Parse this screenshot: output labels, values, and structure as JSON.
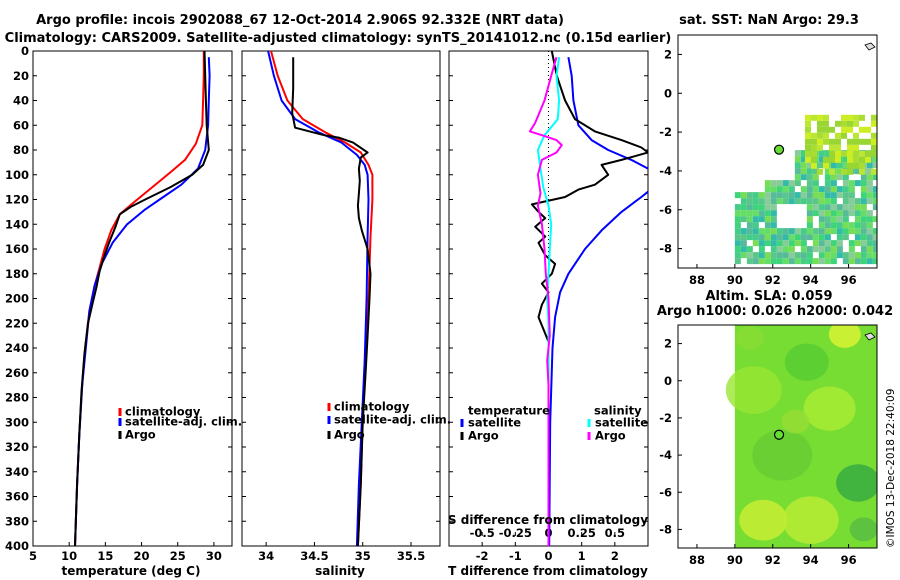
{
  "header": {
    "title_line1": "Argo profile: incois 2902088_67 12-Oct-2014 2.906S 92.332E (NRT data)",
    "title_line2": "Climatology: CARS2009. Satellite-adjusted climatology: synTS_20141012.nc (0.15d earlier)"
  },
  "colors": {
    "climatology": "#ff0000",
    "satellite": "#0000ff",
    "argo": "#000000",
    "sal_satellite": "#00ffff",
    "sal_argo": "#ff00ff"
  },
  "watermark": "©IMOS 13-Dec-2018 22:40:09",
  "chart_data": [
    {
      "id": "temperature",
      "type": "line",
      "xlabel": "temperature (deg C)",
      "ylabel": "",
      "xlim": [
        5,
        32.5
      ],
      "ylim": [
        400,
        0
      ],
      "xticks": [
        5,
        10,
        15,
        20,
        25,
        30
      ],
      "yticks": [
        0,
        20,
        40,
        60,
        80,
        100,
        120,
        140,
        160,
        180,
        200,
        220,
        240,
        260,
        280,
        300,
        320,
        340,
        360,
        380,
        400
      ],
      "legend": {
        "position": "lower-right",
        "entries": [
          "climatology",
          "satellite-adj. clim.",
          "Argo"
        ]
      },
      "series": [
        {
          "name": "climatology",
          "color": "#ff0000",
          "points": [
            [
              28.6,
              0
            ],
            [
              28.6,
              20
            ],
            [
              28.5,
              40
            ],
            [
              28.4,
              60
            ],
            [
              27.5,
              75
            ],
            [
              26,
              88
            ],
            [
              24,
              98
            ],
            [
              21.5,
              110
            ],
            [
              19,
              122
            ],
            [
              17,
              132
            ],
            [
              15.8,
              145
            ],
            [
              14.9,
              160
            ],
            [
              14.2,
              175
            ],
            [
              13.5,
              190
            ],
            [
              12.8,
              210
            ],
            [
              12.2,
              240
            ],
            [
              11.8,
              270
            ],
            [
              11.4,
              310
            ],
            [
              11.1,
              350
            ],
            [
              10.8,
              400
            ]
          ]
        },
        {
          "name": "satellite-adj. clim.",
          "color": "#0000ff",
          "points": [
            [
              29.3,
              5
            ],
            [
              29.4,
              20
            ],
            [
              29.3,
              40
            ],
            [
              29.2,
              60
            ],
            [
              28.8,
              80
            ],
            [
              27.8,
              95
            ],
            [
              25.5,
              108
            ],
            [
              23,
              118
            ],
            [
              20.5,
              128
            ],
            [
              18,
              140
            ],
            [
              16,
              155
            ],
            [
              14.5,
              172
            ],
            [
              13.5,
              190
            ],
            [
              12.8,
              210
            ],
            [
              12.3,
              240
            ],
            [
              11.8,
              270
            ],
            [
              11.4,
              310
            ],
            [
              11.1,
              350
            ],
            [
              10.8,
              400
            ]
          ]
        },
        {
          "name": "Argo",
          "color": "#000000",
          "points": [
            [
              28.7,
              0
            ],
            [
              28.8,
              20
            ],
            [
              28.9,
              40
            ],
            [
              29,
              60
            ],
            [
              29.3,
              80
            ],
            [
              28.5,
              92
            ],
            [
              27,
              100
            ],
            [
              24,
              110
            ],
            [
              20.5,
              120
            ],
            [
              18.5,
              126
            ],
            [
              17,
              132
            ],
            [
              16.4,
              142
            ],
            [
              15.5,
              155
            ],
            [
              14.9,
              165
            ],
            [
              14.2,
              178
            ],
            [
              13.8,
              190
            ],
            [
              13.2,
              205
            ],
            [
              12.6,
              220
            ],
            [
              12.1,
              245
            ],
            [
              11.7,
              275
            ],
            [
              11.4,
              310
            ],
            [
              11.1,
              350
            ],
            [
              10.8,
              400
            ]
          ]
        }
      ]
    },
    {
      "id": "salinity",
      "type": "line",
      "xlabel": "salinity",
      "ylabel": "",
      "xlim": [
        33.75,
        35.8
      ],
      "ylim": [
        400,
        0
      ],
      "xticks": [
        34,
        34.5,
        35,
        35.5
      ],
      "legend": {
        "position": "lower-right",
        "entries": [
          "climatology",
          "satellite-adj. clim.",
          "Argo"
        ]
      },
      "series": [
        {
          "name": "climatology",
          "color": "#ff0000",
          "points": [
            [
              34.05,
              0
            ],
            [
              34.12,
              20
            ],
            [
              34.22,
              40
            ],
            [
              34.38,
              55
            ],
            [
              34.62,
              66
            ],
            [
              34.82,
              74
            ],
            [
              34.98,
              82
            ],
            [
              35.06,
              92
            ],
            [
              35.1,
              100
            ],
            [
              35.1,
              120
            ],
            [
              35.08,
              150
            ],
            [
              35.06,
              200
            ],
            [
              35.03,
              250
            ],
            [
              35.0,
              300
            ],
            [
              34.98,
              350
            ],
            [
              34.95,
              400
            ]
          ]
        },
        {
          "name": "satellite-adj. clim.",
          "color": "#0000ff",
          "points": [
            [
              34.02,
              0
            ],
            [
              34.08,
              20
            ],
            [
              34.16,
              40
            ],
            [
              34.3,
              55
            ],
            [
              34.55,
              66
            ],
            [
              34.78,
              74
            ],
            [
              34.94,
              84
            ],
            [
              35.02,
              92
            ],
            [
              35.05,
              100
            ],
            [
              35.06,
              120
            ],
            [
              35.05,
              150
            ],
            [
              35.04,
              200
            ],
            [
              35.02,
              250
            ],
            [
              34.99,
              300
            ],
            [
              34.96,
              350
            ],
            [
              34.94,
              400
            ]
          ]
        },
        {
          "name": "Argo",
          "color": "#000000",
          "points": [
            [
              34.28,
              5
            ],
            [
              34.28,
              30
            ],
            [
              34.27,
              50
            ],
            [
              34.3,
              62
            ],
            [
              34.6,
              68
            ],
            [
              34.75,
              70
            ],
            [
              34.9,
              74
            ],
            [
              35.05,
              82
            ],
            [
              34.98,
              86
            ],
            [
              34.96,
              95
            ],
            [
              34.97,
              105
            ],
            [
              34.96,
              115
            ],
            [
              34.95,
              125
            ],
            [
              34.96,
              135
            ],
            [
              34.99,
              145
            ],
            [
              35.05,
              160
            ],
            [
              35.08,
              180
            ],
            [
              35.07,
              200
            ],
            [
              35.05,
              230
            ],
            [
              35.03,
              260
            ],
            [
              35.0,
              300
            ],
            [
              34.98,
              350
            ],
            [
              34.95,
              400
            ]
          ]
        }
      ]
    },
    {
      "id": "difference",
      "type": "line",
      "xlabel": "T difference from climatology",
      "xlabel_top": "S difference from climatology",
      "xlim": [
        -3,
        3
      ],
      "xlim_top": [
        -0.75,
        0.75
      ],
      "ylim": [
        400,
        0
      ],
      "xticks": [
        -2,
        -1,
        0,
        1,
        2
      ],
      "xticks_top": [
        -0.5,
        -0.25,
        0,
        0.25,
        0.5
      ],
      "legend": {
        "position": "lower",
        "group_left": "temperature",
        "group_right": "salinity",
        "entries_left": [
          "satellite",
          "Argo"
        ],
        "entries_right": [
          "satellite",
          "Argo"
        ]
      },
      "series": [
        {
          "name": "T satellite",
          "axis": "T",
          "color": "#0000ff",
          "points": [
            [
              0.6,
              5
            ],
            [
              0.7,
              20
            ],
            [
              0.75,
              40
            ],
            [
              0.9,
              60
            ],
            [
              1.3,
              72
            ],
            [
              1.8,
              80
            ],
            [
              2.5,
              88
            ],
            [
              3,
              95
            ],
            [
              3.4,
              105
            ],
            [
              2.8,
              118
            ],
            [
              2.2,
              130
            ],
            [
              1.6,
              145
            ],
            [
              1.1,
              160
            ],
            [
              0.6,
              180
            ],
            [
              0.35,
              195
            ],
            [
              0.2,
              215
            ],
            [
              0.12,
              240
            ],
            [
              0.05,
              300
            ],
            [
              0.02,
              400
            ]
          ]
        },
        {
          "name": "T Argo",
          "axis": "T",
          "color": "#000000",
          "points": [
            [
              0.1,
              0
            ],
            [
              0.25,
              20
            ],
            [
              0.5,
              40
            ],
            [
              0.8,
              55
            ],
            [
              1.4,
              65
            ],
            [
              2.2,
              72
            ],
            [
              2.8,
              78
            ],
            [
              3,
              82
            ],
            [
              2.2,
              88
            ],
            [
              1.6,
              92
            ],
            [
              1.8,
              100
            ],
            [
              1.4,
              108
            ],
            [
              0.9,
              112
            ],
            [
              0.5,
              118
            ],
            [
              -0.5,
              124
            ],
            [
              -0.3,
              130
            ],
            [
              -0.1,
              135
            ],
            [
              -0.4,
              142
            ],
            [
              -0.1,
              150
            ],
            [
              -0.3,
              155
            ],
            [
              -0.1,
              165
            ],
            [
              0.2,
              172
            ],
            [
              0.1,
              180
            ],
            [
              -0.2,
              188
            ],
            [
              0,
              195
            ],
            [
              -0.2,
              205
            ],
            [
              -0.3,
              215
            ],
            [
              -0.15,
              225
            ],
            [
              0,
              235
            ],
            [
              0,
              400
            ]
          ]
        },
        {
          "name": "S satellite",
          "axis": "S",
          "color": "#00ffff",
          "points": [
            [
              0.08,
              5
            ],
            [
              0.06,
              20
            ],
            [
              0.08,
              40
            ],
            [
              0.07,
              55
            ],
            [
              -0.03,
              68
            ],
            [
              -0.08,
              80
            ],
            [
              -0.06,
              95
            ],
            [
              -0.04,
              110
            ],
            [
              0,
              125
            ],
            [
              0.02,
              140
            ],
            [
              0.01,
              160
            ],
            [
              0,
              180
            ],
            [
              -0.01,
              200
            ],
            [
              0,
              220
            ],
            [
              0,
              400
            ]
          ]
        },
        {
          "name": "S Argo",
          "axis": "S",
          "color": "#ff00ff",
          "points": [
            [
              0.06,
              5
            ],
            [
              0.02,
              20
            ],
            [
              -0.03,
              40
            ],
            [
              -0.1,
              58
            ],
            [
              -0.14,
              65
            ],
            [
              -0.05,
              68
            ],
            [
              0.06,
              72
            ],
            [
              0.1,
              76
            ],
            [
              0.06,
              82
            ],
            [
              -0.05,
              88
            ],
            [
              -0.08,
              100
            ],
            [
              -0.06,
              115
            ],
            [
              -0.08,
              125
            ],
            [
              -0.05,
              140
            ],
            [
              -0.03,
              160
            ],
            [
              -0.02,
              180
            ],
            [
              0,
              200
            ],
            [
              0.01,
              230
            ],
            [
              -0.01,
              250
            ],
            [
              0,
              270
            ],
            [
              0,
              400
            ]
          ]
        }
      ]
    },
    {
      "id": "sst-map",
      "type": "heatmap",
      "title": "sat. SST: NaN Argo: 29.3",
      "xlim": [
        87,
        97.5
      ],
      "ylim": [
        -9,
        3
      ],
      "xticks": [
        88,
        90,
        92,
        94,
        96
      ],
      "yticks": [
        2,
        0,
        -2,
        -4,
        -6,
        -8
      ],
      "argo_position": [
        92.332,
        -2.906
      ]
    },
    {
      "id": "sla-map",
      "type": "heatmap",
      "title": "Altim. SLA: 0.059",
      "subtitle": "Argo h1000: 0.026 h2000: 0.042",
      "xlim": [
        87,
        97.5
      ],
      "ylim": [
        -9,
        3
      ],
      "xticks": [
        88,
        90,
        92,
        94,
        96
      ],
      "yticks": [
        2,
        0,
        -2,
        -4,
        -6,
        -8
      ],
      "argo_position": [
        92.332,
        -2.906
      ]
    }
  ]
}
